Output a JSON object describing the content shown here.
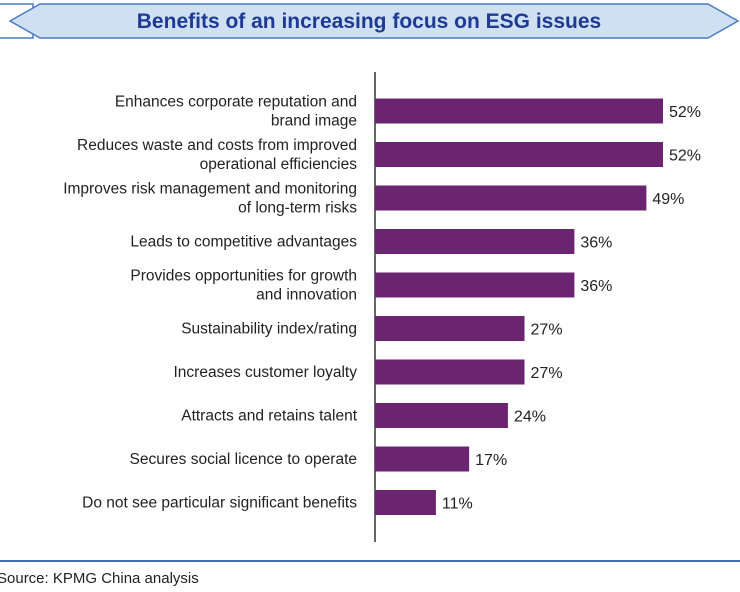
{
  "chart_data": {
    "type": "bar",
    "orientation": "horizontal",
    "title": "Benefits of an increasing focus on ESG issues",
    "categories": [
      [
        "Enhances corporate reputation and",
        "brand image"
      ],
      [
        "Reduces waste and costs from improved",
        "operational efficiencies"
      ],
      [
        "Improves risk management and monitoring",
        "of long-term risks"
      ],
      [
        "Leads to competitive advantages"
      ],
      [
        "Provides opportunities for growth",
        "and innovation"
      ],
      [
        "Sustainability index/rating"
      ],
      [
        "Increases customer loyalty"
      ],
      [
        "Attracts and retains talent"
      ],
      [
        "Secures social licence to operate"
      ],
      [
        "Do not see particular significant benefits"
      ]
    ],
    "values": [
      52,
      52,
      49,
      36,
      36,
      27,
      27,
      24,
      17,
      11
    ],
    "value_suffix": "%",
    "xlim": [
      0,
      60
    ],
    "grid": false,
    "legend": "none"
  },
  "source": "Source: KPMG China analysis",
  "colors": {
    "bar": "#6b2570",
    "title_text": "#1f3a93",
    "banner_fill": "#cfe0f3",
    "banner_stroke": "#4a7bc2",
    "rule": "#3f6fb5",
    "axis": "#333333",
    "text": "#222222"
  }
}
